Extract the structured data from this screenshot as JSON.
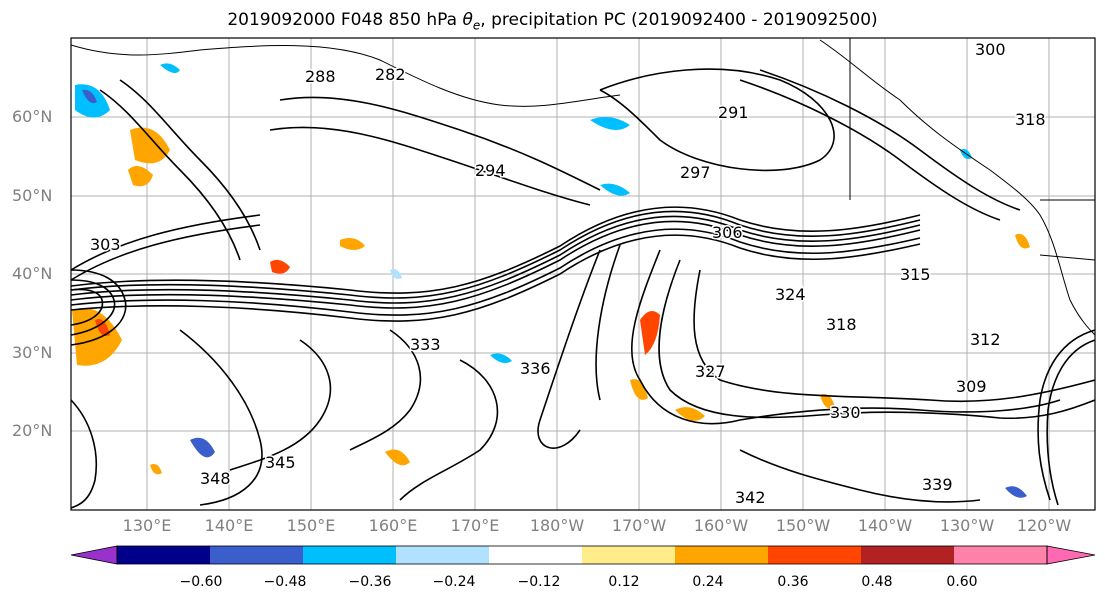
{
  "title": "2019092000 F048 850 hPa θe, precipitation PC (2019092400 - 2019092500)",
  "lat_labels": [
    "60°N",
    "50°N",
    "40°N",
    "30°N",
    "20°N"
  ],
  "lon_labels": [
    "130°E",
    "140°E",
    "150°E",
    "160°E",
    "170°E",
    "180°W",
    "170°W",
    "160°W",
    "150°W",
    "140°W",
    "130°W",
    "120°W"
  ],
  "contour_labels": [
    "282",
    "288",
    "294",
    "297",
    "291",
    "300",
    "303",
    "306",
    "309",
    "312",
    "315",
    "318",
    "324",
    "327",
    "330",
    "333",
    "336",
    "339",
    "342",
    "345",
    "348"
  ],
  "colorbar": {
    "ticks": [
      "−0.60",
      "−0.48",
      "−0.36",
      "−0.24",
      "−0.12",
      "0.12",
      "0.24",
      "0.36",
      "0.48",
      "0.60"
    ],
    "colors": [
      "#9932cc",
      "#00008b",
      "#3a5fcd",
      "#00bfff",
      "#b0e2ff",
      "#ffffff",
      "#ffec8b",
      "#ffa500",
      "#ff4500",
      "#b22222",
      "#ff82ab",
      "#ff69b4"
    ]
  },
  "map_colors": {
    "land_line": "#000000",
    "grid": "#b0b0b0",
    "contour": "#000000"
  }
}
